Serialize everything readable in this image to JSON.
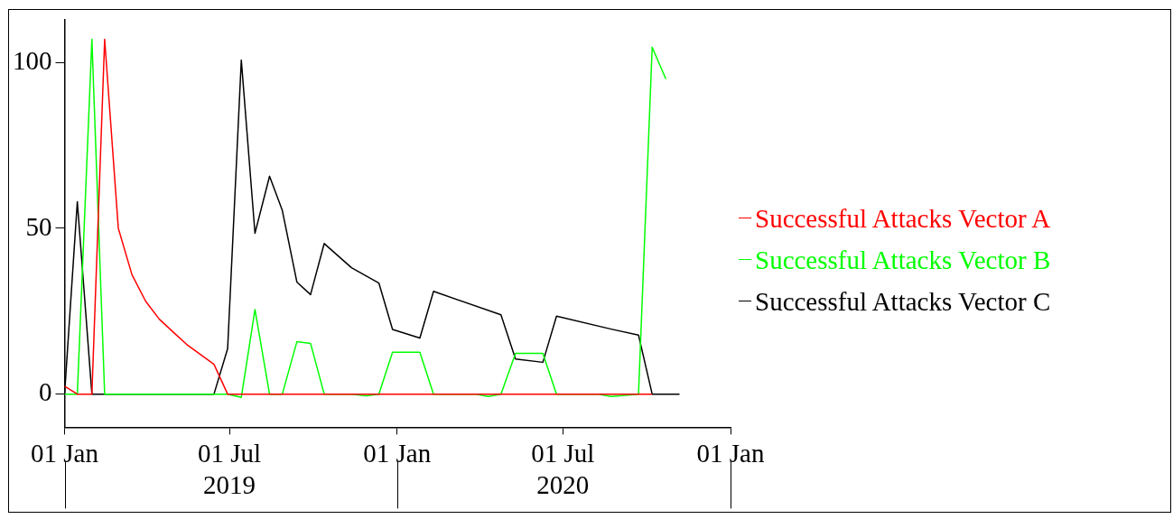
{
  "chart_data": {
    "type": "line",
    "legend": "right",
    "marker": "none",
    "line_style": "solid",
    "grid": false,
    "xlim": [
      "2019-01-01",
      "2021-01-01"
    ],
    "xticks": [
      {
        "value": "2019-01-01",
        "label": "01 Jan"
      },
      {
        "value": "2019-07-01",
        "label": "01 Jul\n2019"
      },
      {
        "value": "2020-01-01",
        "label": "01 Jan"
      },
      {
        "value": "2020-07-01",
        "label": "01 Jul\n2020"
      },
      {
        "value": "2021-01-01",
        "label": "01 Jan"
      }
    ],
    "ylim": [
      -10,
      113
    ],
    "yticks": [
      0,
      50,
      100
    ],
    "series": [
      {
        "name": "Successful Attacks Vector A",
        "color": "#ff0000",
        "x": [
          "2019-01-01",
          "2019-01-15",
          "2019-01-31",
          "2019-02-14",
          "2019-03-01",
          "2019-03-16",
          "2019-03-31",
          "2019-04-15",
          "2019-05-01",
          "2019-05-15",
          "2019-05-30",
          "2019-06-14",
          "2019-06-29",
          "2020-10-07"
        ],
        "values": [
          2.4,
          0,
          0,
          107,
          50,
          36,
          28,
          22.6,
          18.5,
          15,
          12,
          9,
          0,
          0
        ]
      },
      {
        "name": "Successful Attacks Vector B",
        "color": "#00ff00",
        "x": [
          "2019-01-01",
          "2019-01-15",
          "2019-01-31",
          "2019-02-14",
          "2019-06-29",
          "2019-07-14",
          "2019-07-29",
          "2019-08-14",
          "2019-08-28",
          "2019-09-13",
          "2019-09-28",
          "2019-10-13",
          "2019-11-12",
          "2019-11-28",
          "2019-12-12",
          "2019-12-27",
          "2020-01-26",
          "2020-02-10",
          "2020-03-28",
          "2020-04-10",
          "2020-04-24",
          "2020-05-10",
          "2020-06-09",
          "2020-06-24",
          "2020-08-09",
          "2020-08-23",
          "2020-09-22",
          "2020-10-07",
          "2020-10-22"
        ],
        "values": [
          0,
          0,
          107,
          0,
          0,
          -1,
          25.5,
          0,
          0,
          15.8,
          15.3,
          0,
          0,
          -0.5,
          0,
          12.6,
          12.6,
          0,
          0,
          -0.7,
          0,
          12.3,
          12.3,
          0,
          0,
          -0.7,
          0,
          104.6,
          95
        ]
      },
      {
        "name": "Successful Attacks Vector C",
        "color": "#000000",
        "x": [
          "2019-01-01",
          "2019-01-15",
          "2019-01-31",
          "2019-06-14",
          "2019-06-29",
          "2019-07-14",
          "2019-07-29",
          "2019-08-14",
          "2019-08-28",
          "2019-09-13",
          "2019-09-28",
          "2019-10-13",
          "2019-11-12",
          "2019-12-12",
          "2019-12-27",
          "2020-01-26",
          "2020-02-10",
          "2020-04-24",
          "2020-05-10",
          "2020-06-09",
          "2020-06-24",
          "2020-08-23",
          "2020-09-22",
          "2020-10-07",
          "2020-11-06"
        ],
        "values": [
          0,
          58,
          0,
          0,
          13.7,
          100.7,
          48.5,
          65.7,
          55.4,
          33.8,
          30,
          45.4,
          38.1,
          33.5,
          19.5,
          16.9,
          31,
          23.9,
          10.6,
          9.6,
          23.5,
          19.6,
          17.8,
          0,
          0
        ]
      }
    ]
  }
}
